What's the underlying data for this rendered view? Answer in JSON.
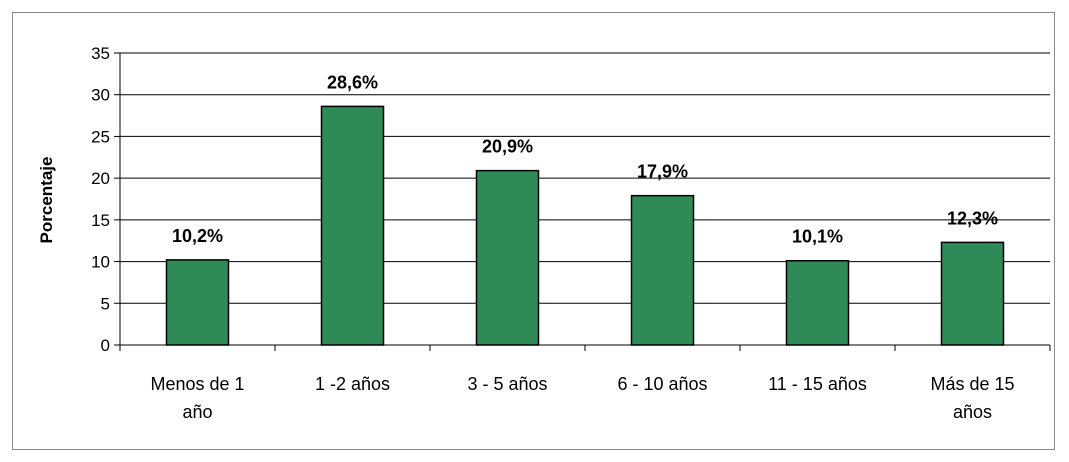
{
  "chart_data": {
    "type": "bar",
    "title": "",
    "xlabel": "",
    "ylabel": "Porcentaje",
    "ylim": [
      0,
      35
    ],
    "yticks": [
      0,
      5,
      10,
      15,
      20,
      25,
      30,
      35
    ],
    "grid": true,
    "legend": "none",
    "bar_color": "#2e8b57",
    "categories": [
      [
        "Menos de 1",
        "año"
      ],
      [
        "1 -2 años"
      ],
      [
        "3 - 5 años"
      ],
      [
        "6 - 10 años"
      ],
      [
        "11 - 15 años"
      ],
      [
        "Más de 15",
        "años"
      ]
    ],
    "values": [
      10.2,
      28.6,
      20.9,
      17.9,
      10.1,
      12.3
    ],
    "data_labels": [
      "10,2%",
      "28,6%",
      "20,9%",
      "17,9%",
      "10,1%",
      "12,3%"
    ]
  }
}
